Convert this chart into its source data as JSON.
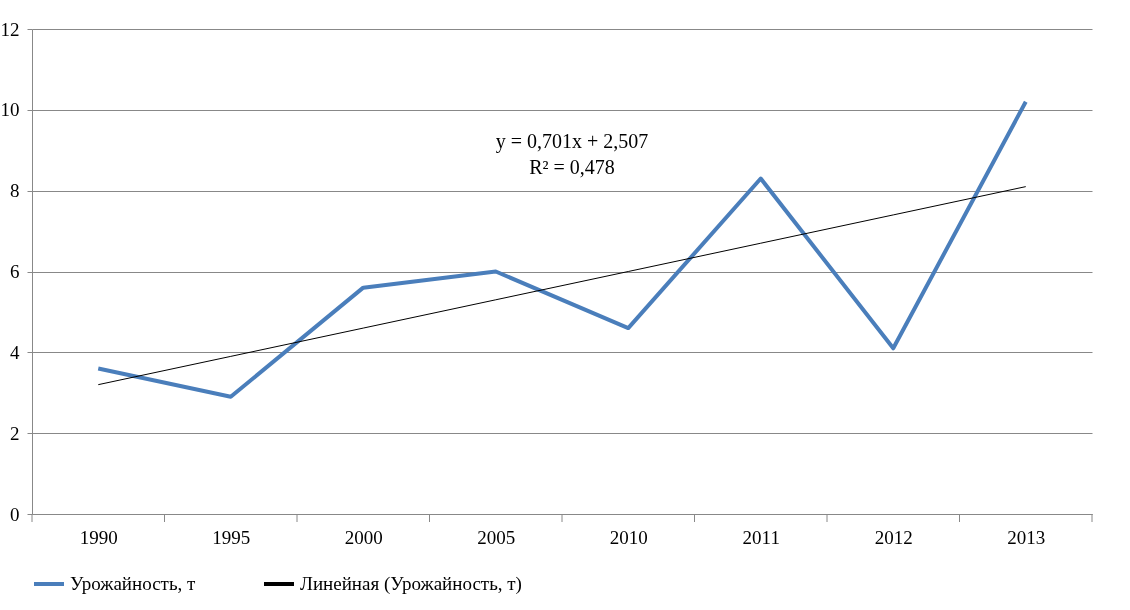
{
  "chart_data": {
    "type": "line",
    "categories": [
      "1990",
      "1995",
      "2000",
      "2005",
      "2010",
      "2011",
      "2012",
      "2013"
    ],
    "series": [
      {
        "name": "Урожайность, т",
        "color": "#4a7ebb",
        "values": [
          3.6,
          2.9,
          5.6,
          6.0,
          4.6,
          8.3,
          4.1,
          10.2
        ]
      },
      {
        "name": "Линейная (Урожайность, т)",
        "color": "#000000",
        "values": [
          3.2,
          3.9,
          4.6,
          5.3,
          6.0,
          6.7,
          7.4,
          8.1
        ]
      }
    ],
    "ylim": [
      0,
      12
    ],
    "yticks": [
      0,
      2,
      4,
      6,
      8,
      10,
      12
    ],
    "grid": "y",
    "legend": "bottom",
    "annotations": [
      "y = 0,701x + 2,507",
      "R² = 0,478"
    ]
  }
}
